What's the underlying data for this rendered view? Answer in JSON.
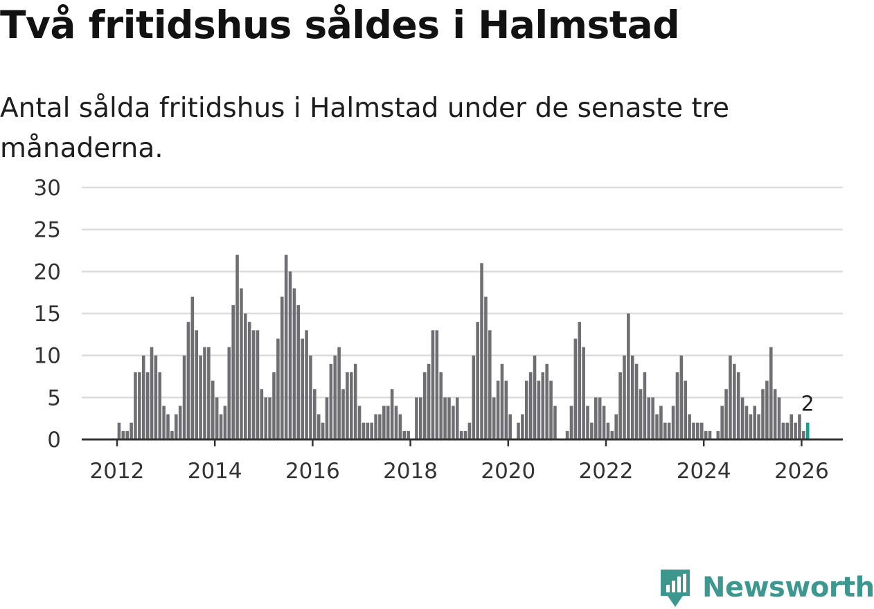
{
  "title": "Två fritidshus såldes i Halmstad",
  "subtitle": "Antal sålda fritidshus i Halmstad under de senaste tre månaderna.",
  "brand": {
    "name": "Newsworthy",
    "color": "#3c978f",
    "icon": "newsworthy-logo-icon"
  },
  "colors": {
    "bar": "#6f6e73",
    "highlight": "#1a9c8e",
    "grid": "#dcdcdc",
    "axis": "#333333"
  },
  "chart_data": {
    "type": "bar",
    "x_start": "2012-01",
    "x_interval": "month",
    "xticks": [
      "2012",
      "2014",
      "2016",
      "2018",
      "2020",
      "2022",
      "2024",
      "2026"
    ],
    "yticks": [
      0,
      5,
      10,
      15,
      20,
      25,
      30
    ],
    "ylim": [
      0,
      30
    ],
    "grid": true,
    "highlight_last": true,
    "last_value_label": "2",
    "values": [
      2,
      1,
      1,
      2,
      8,
      8,
      10,
      8,
      11,
      10,
      8,
      4,
      3,
      1,
      3,
      4,
      10,
      14,
      17,
      13,
      10,
      11,
      11,
      7,
      5,
      3,
      4,
      11,
      16,
      22,
      18,
      15,
      14,
      13,
      13,
      6,
      5,
      5,
      8,
      12,
      17,
      22,
      20,
      18,
      16,
      12,
      13,
      10,
      6,
      3,
      2,
      5,
      9,
      10,
      11,
      6,
      8,
      8,
      9,
      4,
      2,
      2,
      2,
      3,
      3,
      4,
      4,
      6,
      4,
      3,
      1,
      1,
      0,
      5,
      5,
      8,
      9,
      13,
      13,
      8,
      5,
      5,
      4,
      5,
      1,
      1,
      2,
      10,
      14,
      21,
      17,
      13,
      5,
      7,
      9,
      7,
      3,
      0,
      2,
      3,
      7,
      8,
      10,
      7,
      8,
      9,
      7,
      4,
      0,
      0,
      1,
      4,
      12,
      14,
      11,
      4,
      2,
      5,
      5,
      4,
      2,
      1,
      3,
      8,
      10,
      15,
      10,
      9,
      6,
      8,
      5,
      5,
      3,
      4,
      2,
      2,
      4,
      8,
      10,
      7,
      3,
      2,
      2,
      2,
      1,
      1,
      0,
      1,
      4,
      6,
      10,
      9,
      8,
      5,
      4,
      3,
      4,
      3,
      6,
      7,
      11,
      6,
      5,
      2,
      2,
      3,
      2,
      3,
      1,
      2
    ]
  }
}
